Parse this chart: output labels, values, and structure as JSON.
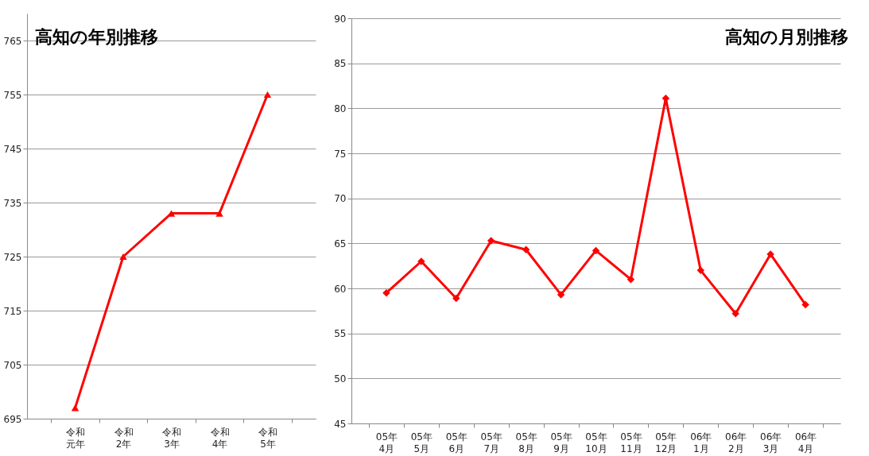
{
  "chart_data": [
    {
      "type": "line",
      "title": "高知の年別推移",
      "categories": [
        "令和元年",
        "令和2年",
        "令和3年",
        "令和4年",
        "令和5年"
      ],
      "series": [
        {
          "color": "#ff0000",
          "values": [
            697,
            725,
            733,
            733,
            755
          ]
        }
      ],
      "ylim": [
        695,
        770
      ],
      "yticks": [
        695,
        705,
        715,
        725,
        735,
        745,
        755,
        765
      ],
      "grid": "y",
      "marker": "triangle",
      "legend": false
    },
    {
      "type": "line",
      "title": "高知の月別推移",
      "categories": [
        "05年4月",
        "05年5月",
        "05年6月",
        "05年7月",
        "05年8月",
        "05年9月",
        "05年10月",
        "05年11月",
        "05年12月",
        "06年1月",
        "06年2月",
        "06年3月",
        "06年4月"
      ],
      "series": [
        {
          "color": "#ff0000",
          "values": [
            59.5,
            63,
            58.9,
            65.3,
            64.3,
            59.3,
            64.2,
            61,
            81.1,
            62,
            57.2,
            63.8,
            58.2
          ]
        }
      ],
      "ylim": [
        45,
        90
      ],
      "yticks": [
        45,
        50,
        55,
        60,
        65,
        70,
        75,
        80,
        85,
        90
      ],
      "grid": "y",
      "marker": "diamond",
      "legend": false
    }
  ]
}
